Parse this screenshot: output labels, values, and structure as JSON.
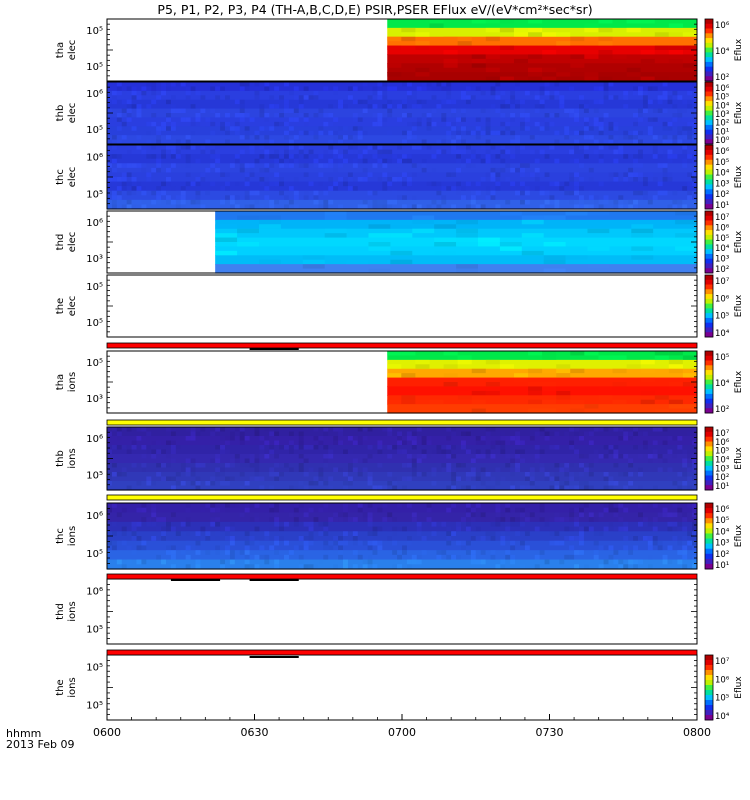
{
  "title": "P5, P1, P2, P3, P4 (TH-A,B,C,D,E) PSIR,PSER EFlux eV/(eV*cm²*sec*sr)",
  "footer": {
    "time_label": "hhmm",
    "date_label": "2013 Feb 09"
  },
  "colors": {
    "panel_border": "#000000",
    "flag_red": "#ff0000",
    "flag_yellow": "#ffff00",
    "spectrogram_blue": "#2a3ee0"
  },
  "chart_data": {
    "type": "heatmap",
    "x_axis": {
      "ticks": [
        "0600",
        "0630",
        "0700",
        "0730",
        "0800"
      ],
      "range": [
        "06:00",
        "08:00"
      ]
    },
    "y_scale": "log",
    "colorbar_label": "Eflux",
    "panels": [
      {
        "id": "tha-elec",
        "ylabel": [
          "tha",
          "elec"
        ],
        "yticks": [
          "10⁵",
          "10⁵"
        ],
        "data_start": "06:57",
        "colorbar_ticks": [
          "10⁶",
          "10⁴",
          "10²"
        ],
        "stripes": [
          "#00e84a",
          "#d8f000",
          "#ff7000",
          "#e80000",
          "#c00000",
          "#b00000",
          "#a80000"
        ]
      },
      {
        "id": "thb-elec",
        "ylabel": [
          "thb",
          "elec"
        ],
        "yticks": [
          "10⁶",
          "10⁵"
        ],
        "data_start": "06:00",
        "colorbar_ticks": [
          "10⁶",
          "10⁵",
          "10⁴",
          "10³",
          "10²",
          "10¹",
          "10⁰"
        ],
        "stripes": [
          "#2530d8",
          "#2a3ee0",
          "#2638d8",
          "#2c44e0",
          "#2a3ee0",
          "#2840dc",
          "#2c48e2"
        ]
      },
      {
        "id": "thc-elec",
        "ylabel": [
          "thc",
          "elec"
        ],
        "yticks": [
          "10⁶",
          "10⁵"
        ],
        "data_start": "06:00",
        "colorbar_ticks": [
          "10⁶",
          "10⁵",
          "10⁴",
          "10³",
          "10²",
          "10¹"
        ],
        "stripes": [
          "#2a3ee0",
          "#2638d8",
          "#2c44e0",
          "#2a40de",
          "#2638d8",
          "#2c4ae2",
          "#3060e8"
        ]
      },
      {
        "id": "thd-elec",
        "ylabel": [
          "thd",
          "elec"
        ],
        "yticks": [
          "10⁶",
          "10³"
        ],
        "data_start": "06:22",
        "colorbar_ticks": [
          "10⁷",
          "10⁶",
          "10⁵",
          "10⁴",
          "10³",
          "10²"
        ],
        "stripes": [
          "#1f78f0",
          "#00b4f8",
          "#00c8fc",
          "#00d8ff",
          "#00d0ff",
          "#00bcf8",
          "#4080f0"
        ]
      },
      {
        "id": "the-elec",
        "ylabel": [
          "the",
          "elec"
        ],
        "yticks": [
          "10⁵",
          "10⁵"
        ],
        "data_start": null,
        "colorbar_ticks": [
          "10⁷",
          "10⁶",
          "10⁵",
          "10⁴"
        ],
        "stripes": []
      },
      {
        "id": "tha-ions",
        "ylabel": [
          "tha",
          "ions"
        ],
        "yticks": [
          "10⁵",
          "10³"
        ],
        "data_start": "06:57",
        "colorbar_ticks": [
          "10⁵",
          "10⁴",
          "10²"
        ],
        "stripes": [
          "#00e84a",
          "#e0f000",
          "#ffa800",
          "#ff2000",
          "#ff1000",
          "#ff2800",
          "#ff3c00"
        ]
      },
      {
        "id": "thb-ions",
        "ylabel": [
          "thb",
          "ions"
        ],
        "yticks": [
          "10⁶",
          "10⁵"
        ],
        "data_start": "06:00",
        "colorbar_ticks": [
          "10⁷",
          "10⁶",
          "10⁵",
          "10⁴",
          "10³",
          "10²",
          "10¹"
        ],
        "stripes": [
          "#3020a0",
          "#3420a8",
          "#3024a8",
          "#3428b0",
          "#3030b0",
          "#3038b8",
          "#3040c0"
        ]
      },
      {
        "id": "thc-ions",
        "ylabel": [
          "thc",
          "ions"
        ],
        "yticks": [
          "10⁶",
          "10⁵"
        ],
        "data_start": "06:00",
        "colorbar_ticks": [
          "10⁶",
          "10⁵",
          "10⁴",
          "10³",
          "10²",
          "10¹"
        ],
        "stripes": [
          "#3420a8",
          "#3424a8",
          "#2c30b8",
          "#2a40c8",
          "#2a50d8",
          "#2a64e4",
          "#2a80ec"
        ]
      },
      {
        "id": "thd-ions",
        "ylabel": [
          "thd",
          "ions"
        ],
        "yticks": [
          "10⁶",
          "10⁵"
        ],
        "data_start": null,
        "colorbar_ticks": [],
        "stripes": []
      },
      {
        "id": "the-ions",
        "ylabel": [
          "the",
          "ions"
        ],
        "yticks": [
          "10⁵",
          "10⁵"
        ],
        "data_start": null,
        "colorbar_ticks": [
          "10⁷",
          "10⁶",
          "10⁵",
          "10⁴"
        ],
        "stripes": []
      }
    ],
    "flag_bars": [
      {
        "after_panel": "the-elec",
        "color": "#ff0000"
      },
      {
        "after_panel": "tha-ions",
        "color": "#ffff00"
      },
      {
        "after_panel": "thb-ions",
        "color": "#ffff00"
      },
      {
        "after_panel": "thc-ions",
        "color": "#ff0000"
      },
      {
        "after_panel": "thd-ions",
        "color": "#ff0000"
      }
    ]
  }
}
